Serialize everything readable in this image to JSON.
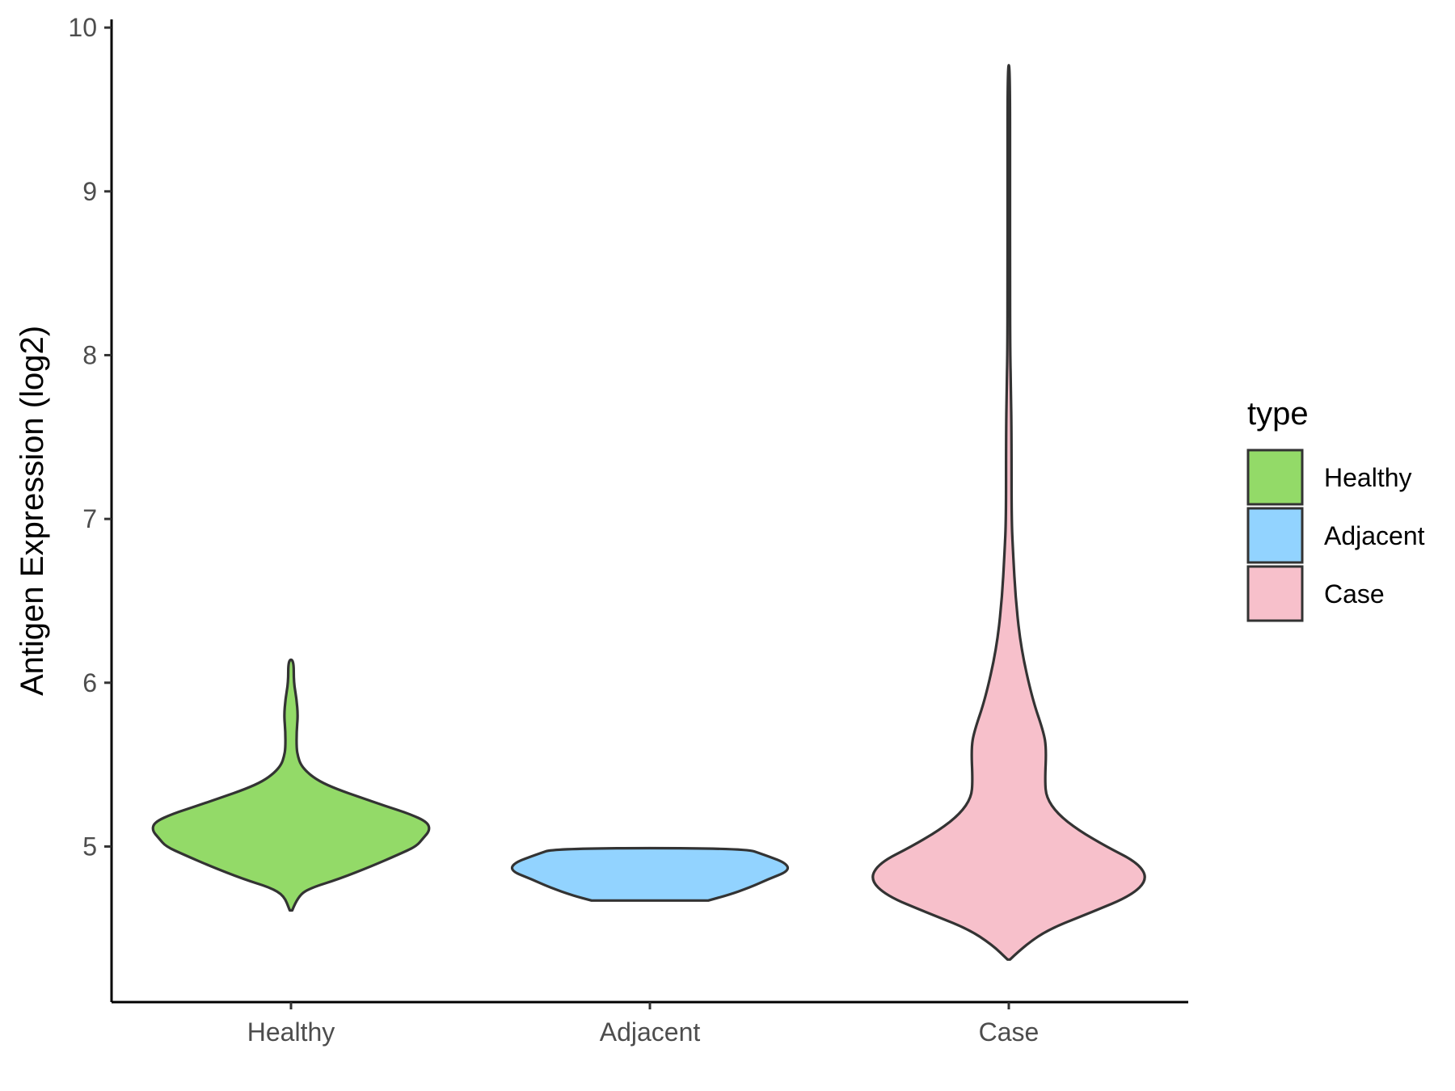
{
  "chart_data": {
    "type": "violin",
    "title": "",
    "xlabel": "",
    "ylabel": "Antigen Expression (log2)",
    "ylim": [
      4.05,
      10.05
    ],
    "yticks": [
      5,
      6,
      7,
      8,
      9,
      10
    ],
    "categories": [
      "Healthy",
      "Adjacent",
      "Case"
    ],
    "legend": {
      "title": "type",
      "position": "right",
      "entries": [
        {
          "label": "Healthy",
          "color": "#93DA68"
        },
        {
          "label": "Adjacent",
          "color": "#92D3FF"
        },
        {
          "label": "Case",
          "color": "#F7C0CB"
        }
      ]
    },
    "series": [
      {
        "name": "Healthy",
        "color": "#93DA68",
        "min": 4.61,
        "max": 6.14,
        "profile": [
          [
            4.61,
            0.0
          ],
          [
            4.7,
            0.05
          ],
          [
            4.75,
            0.15
          ],
          [
            4.8,
            0.34
          ],
          [
            4.88,
            0.58
          ],
          [
            4.95,
            0.77
          ],
          [
            5.0,
            0.9
          ],
          [
            5.05,
            0.95
          ],
          [
            5.1,
            1.0
          ],
          [
            5.15,
            0.98
          ],
          [
            5.2,
            0.85
          ],
          [
            5.25,
            0.67
          ],
          [
            5.3,
            0.5
          ],
          [
            5.35,
            0.33
          ],
          [
            5.4,
            0.2
          ],
          [
            5.45,
            0.12
          ],
          [
            5.5,
            0.07
          ],
          [
            5.55,
            0.05
          ],
          [
            5.6,
            0.04
          ],
          [
            5.7,
            0.04
          ],
          [
            5.8,
            0.05
          ],
          [
            5.9,
            0.04
          ],
          [
            6.0,
            0.02
          ],
          [
            6.14,
            0.02
          ]
        ]
      },
      {
        "name": "Adjacent",
        "color": "#92D3FF",
        "min": 4.67,
        "max": 4.99,
        "profile": [
          [
            4.67,
            0.42
          ],
          [
            4.7,
            0.55
          ],
          [
            4.75,
            0.72
          ],
          [
            4.8,
            0.85
          ],
          [
            4.85,
            1.0
          ],
          [
            4.9,
            0.98
          ],
          [
            4.95,
            0.82
          ],
          [
            4.99,
            0.68
          ]
        ]
      },
      {
        "name": "Case",
        "color": "#F7C0CB",
        "min": 4.31,
        "max": 9.77,
        "profile": [
          [
            4.31,
            0.0
          ],
          [
            4.4,
            0.12
          ],
          [
            4.5,
            0.3
          ],
          [
            4.6,
            0.6
          ],
          [
            4.7,
            0.88
          ],
          [
            4.8,
            1.0
          ],
          [
            4.9,
            0.93
          ],
          [
            5.0,
            0.7
          ],
          [
            5.1,
            0.5
          ],
          [
            5.2,
            0.35
          ],
          [
            5.3,
            0.27
          ],
          [
            5.4,
            0.26
          ],
          [
            5.6,
            0.27
          ],
          [
            5.7,
            0.25
          ],
          [
            5.9,
            0.17
          ],
          [
            6.2,
            0.09
          ],
          [
            6.5,
            0.05
          ],
          [
            6.8,
            0.03
          ],
          [
            7.0,
            0.02
          ],
          [
            7.5,
            0.02
          ],
          [
            7.8,
            0.015
          ],
          [
            8.0,
            0.01
          ],
          [
            8.5,
            0.008
          ],
          [
            9.0,
            0.007
          ],
          [
            9.77,
            0.006
          ]
        ]
      }
    ]
  }
}
